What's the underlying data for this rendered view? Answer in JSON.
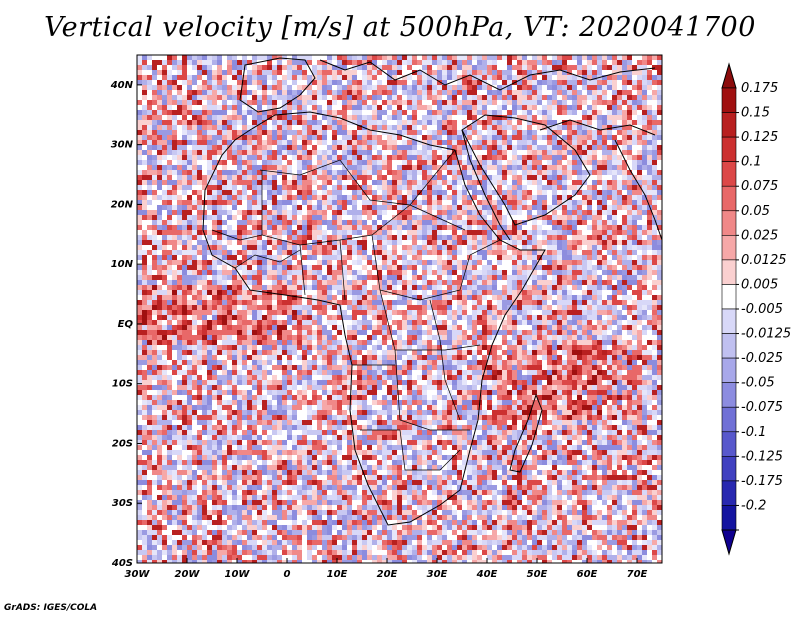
{
  "title": "Vertical velocity [m/s] at 500hPa, VT: 2020041700",
  "credit": "GrADS: IGES/COLA",
  "map": {
    "variable": "Vertical velocity",
    "units": "m/s",
    "level": "500hPa",
    "valid_time": "2020041700",
    "lat_range": [
      -40,
      45
    ],
    "lon_range": [
      -30,
      75
    ],
    "lat_ticks": [
      "40N",
      "30N",
      "20N",
      "10N",
      "EQ",
      "10S",
      "20S",
      "30S",
      "40S"
    ],
    "lat_values": [
      40,
      30,
      20,
      10,
      0,
      -10,
      -20,
      -30,
      -40
    ],
    "lon_ticks": [
      "30W",
      "20W",
      "10W",
      "0",
      "10E",
      "20E",
      "30E",
      "40E",
      "50E",
      "60E",
      "70E"
    ],
    "lon_values": [
      -30,
      -20,
      -10,
      0,
      10,
      20,
      30,
      40,
      50,
      60,
      70
    ]
  },
  "colorbar": {
    "labels": [
      "0.175",
      "0.15",
      "0.125",
      "0.1",
      "0.075",
      "0.05",
      "0.025",
      "0.0125",
      "0.005",
      "-0.005",
      "-0.0125",
      "-0.025",
      "-0.05",
      "-0.075",
      "-0.1",
      "-0.125",
      "-0.175",
      "-0.2"
    ],
    "colors": [
      "#a01010",
      "#b82020",
      "#cc3030",
      "#dc4848",
      "#e86868",
      "#f08888",
      "#f6a8a8",
      "#fad0d0",
      "#ffffff",
      "#d8d8f8",
      "#c0c0f0",
      "#a8a8ea",
      "#8c8ce0",
      "#7070d6",
      "#5858cc",
      "#4040c0",
      "#2828b0",
      "#1414a0"
    ],
    "top_arrow_color": "#8c0c0c",
    "bottom_arrow_color": "#100090"
  }
}
